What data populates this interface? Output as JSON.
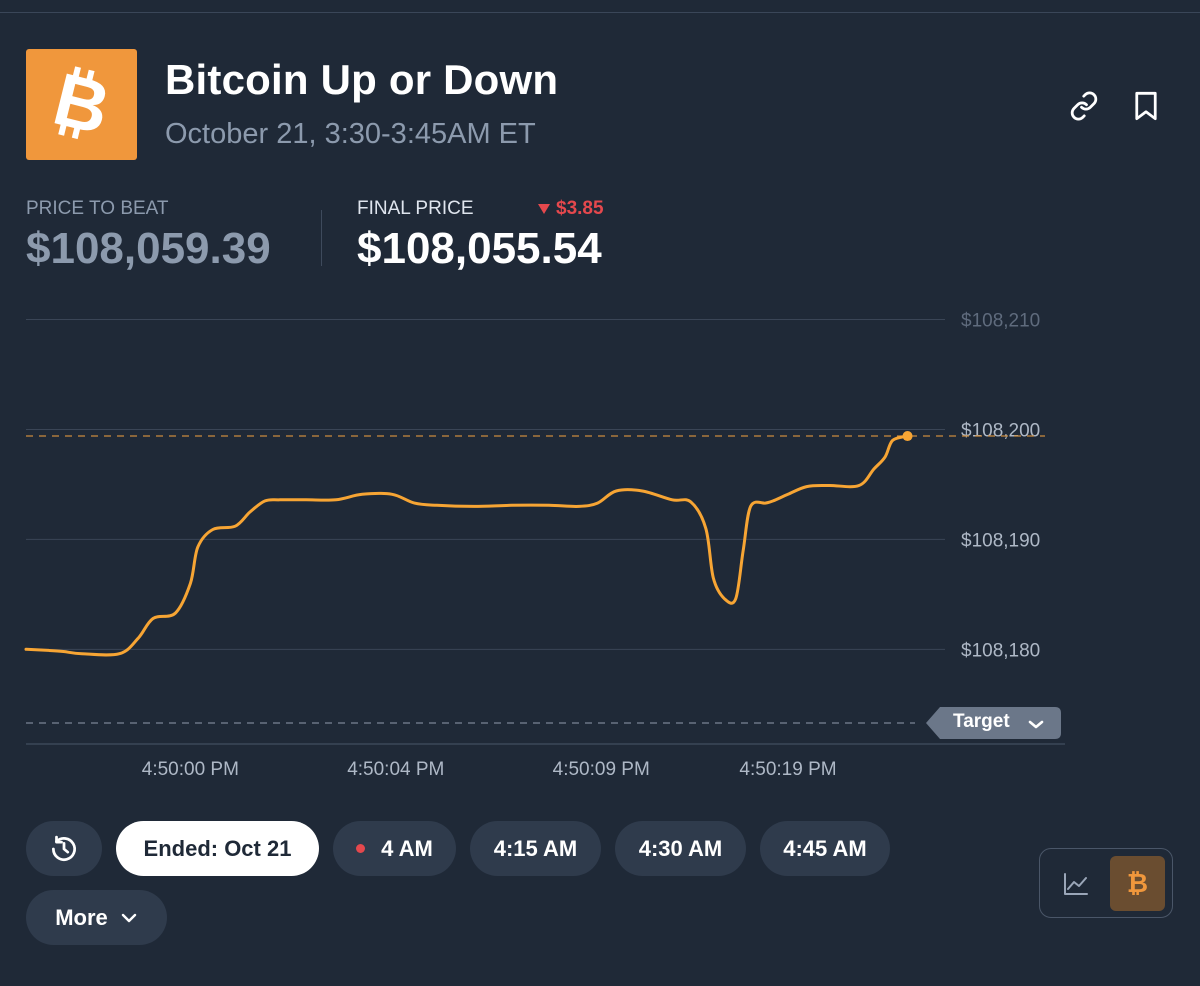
{
  "market": {
    "title": "Bitcoin Up or Down",
    "subtitle": "October 21, 3:30-3:45AM ET",
    "logo_icon": "bitcoin-icon",
    "logo_color": "#f0973c"
  },
  "header_actions": [
    {
      "name": "copy-link",
      "icon": "link-icon"
    },
    {
      "name": "bookmark",
      "icon": "bookmark-icon"
    }
  ],
  "stats": {
    "price_to_beat_label": "PRICE TO BEAT",
    "price_to_beat_value": "$108,059.39",
    "final_price_label": "FINAL PRICE",
    "final_price_value": "$108,055.54",
    "delta": "$3.85",
    "delta_direction": "down",
    "delta_color": "#e5484d"
  },
  "chart_data": {
    "type": "line",
    "title": "",
    "xlabel": "",
    "ylabel": "",
    "ylim": [
      108173.3,
      108211.5
    ],
    "y_ticks": [
      {
        "value": 108210,
        "label": "$108,210"
      },
      {
        "value": 108200,
        "label": "$108,200"
      },
      {
        "value": 108190,
        "label": "$108,190"
      },
      {
        "value": 108180,
        "label": "$108,180"
      }
    ],
    "x_ticks": [
      {
        "t": 4.4,
        "label": "4:50:00 PM"
      },
      {
        "t": 9.9,
        "label": "4:50:04 PM"
      },
      {
        "t": 15.4,
        "label": "4:50:09 PM"
      },
      {
        "t": 20.4,
        "label": "4:50:19 PM"
      }
    ],
    "grid": true,
    "line_color": "#f7a534",
    "reference_lines": [
      {
        "value": 108199.4,
        "color": "#c98a3e",
        "style": "dashed"
      },
      {
        "value": 108173.3,
        "color": "#7a8496",
        "style": "dashed",
        "label": "Target"
      }
    ],
    "series": [
      {
        "values": [
          [
            0.0,
            108180.0
          ],
          [
            0.6,
            108179.9
          ],
          [
            1.0,
            108179.8
          ],
          [
            1.5,
            108179.6
          ],
          [
            2.5,
            108179.6
          ],
          [
            3.0,
            108181.0
          ],
          [
            3.4,
            108182.8
          ],
          [
            4.0,
            108183.3
          ],
          [
            4.4,
            108186.0
          ],
          [
            4.6,
            108189.3
          ],
          [
            5.0,
            108190.9
          ],
          [
            5.6,
            108191.2
          ],
          [
            6.0,
            108192.5
          ],
          [
            6.4,
            108193.5
          ],
          [
            6.8,
            108193.6
          ],
          [
            7.5,
            108193.6
          ],
          [
            8.3,
            108193.6
          ],
          [
            9.0,
            108194.1
          ],
          [
            9.8,
            108194.1
          ],
          [
            10.4,
            108193.3
          ],
          [
            11.0,
            108193.1
          ],
          [
            12.0,
            108193.0
          ],
          [
            13.0,
            108193.1
          ],
          [
            14.0,
            108193.1
          ],
          [
            14.8,
            108193.0
          ],
          [
            15.3,
            108193.3
          ],
          [
            15.8,
            108194.4
          ],
          [
            16.5,
            108194.4
          ],
          [
            17.3,
            108193.6
          ],
          [
            17.8,
            108193.4
          ],
          [
            18.2,
            108191.0
          ],
          [
            18.4,
            108186.5
          ],
          [
            18.7,
            108184.6
          ],
          [
            19.0,
            108184.6
          ],
          [
            19.2,
            108189.0
          ],
          [
            19.4,
            108193.0
          ],
          [
            19.8,
            108193.3
          ],
          [
            20.0,
            108193.5
          ],
          [
            20.4,
            108194.1
          ],
          [
            20.9,
            108194.8
          ],
          [
            21.5,
            108194.9
          ],
          [
            22.3,
            108194.9
          ],
          [
            22.7,
            108196.4
          ],
          [
            23.0,
            108197.5
          ],
          [
            23.2,
            108199.0
          ],
          [
            23.6,
            108199.4
          ]
        ]
      }
    ]
  },
  "target_pill": {
    "label": "Target",
    "icon": "chevron-down-icon"
  },
  "time_pills": [
    {
      "label": "Ended: Oct 21",
      "active": true
    },
    {
      "label": "4 AM",
      "live": true
    },
    {
      "label": "4:15 AM"
    },
    {
      "label": "4:30 AM"
    },
    {
      "label": "4:45 AM"
    }
  ],
  "history_button": {
    "icon": "history-clock-icon"
  },
  "more_button": {
    "label": "More",
    "icon": "chevron-down-icon"
  },
  "view_toggle": [
    {
      "name": "line-chart-view",
      "icon": "line-chart-icon"
    },
    {
      "name": "bitcoin-view",
      "icon": "bitcoin-icon",
      "glyph": "₿",
      "selected": true
    }
  ]
}
